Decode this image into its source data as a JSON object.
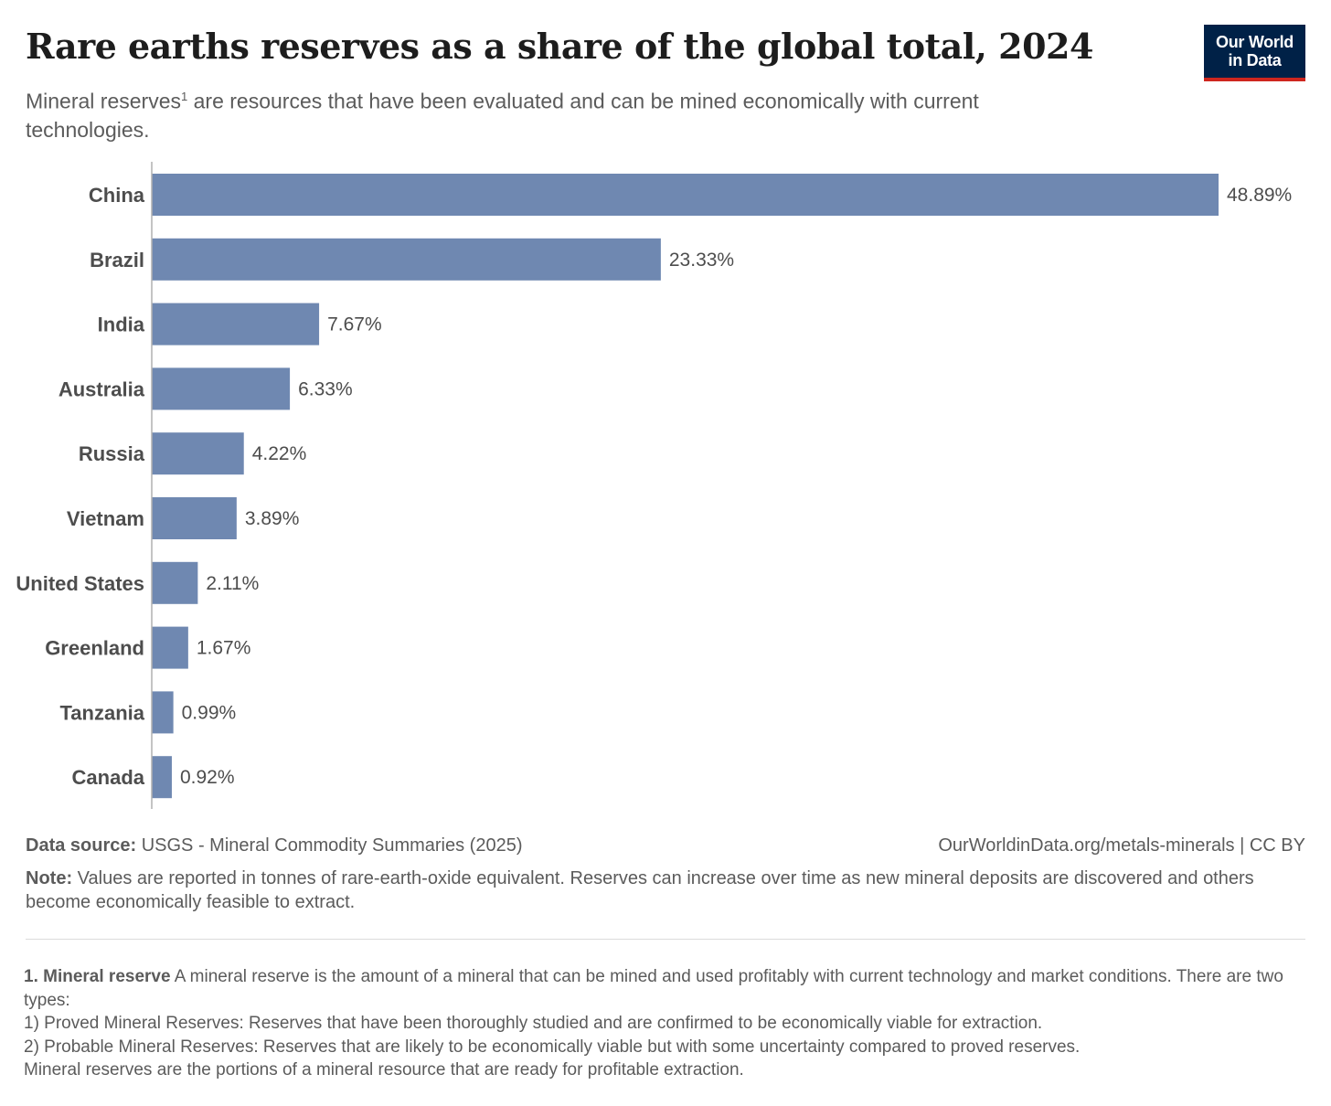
{
  "header": {
    "title": "Rare earths reserves as a share of the global total, 2024",
    "subtitle_before": "Mineral reserves",
    "subtitle_sup": "1",
    "subtitle_after": " are resources that have been evaluated and can be mined economically with current technologies.",
    "logo_line1": "Our World",
    "logo_line2": "in Data"
  },
  "colors": {
    "bar": "#6f88b1",
    "axis": "#b0b0b0",
    "label": "#4d4d4d",
    "value": "#4d4d4d",
    "logo_bg": "#002147",
    "logo_accent": "#ce261e"
  },
  "chart_data": {
    "type": "bar",
    "orientation": "horizontal",
    "title": "Rare earths reserves as a share of the global total, 2024",
    "xlabel": "",
    "ylabel": "",
    "xlim": [
      0,
      48.89
    ],
    "grid": false,
    "legend": "none",
    "unit": "%",
    "categories": [
      "China",
      "Brazil",
      "India",
      "Australia",
      "Russia",
      "Vietnam",
      "United States",
      "Greenland",
      "Tanzania",
      "Canada"
    ],
    "values": [
      48.89,
      23.33,
      7.67,
      6.33,
      4.22,
      3.89,
      2.11,
      1.67,
      0.99,
      0.92
    ],
    "value_labels": [
      "48.89%",
      "23.33%",
      "7.67%",
      "6.33%",
      "4.22%",
      "3.89%",
      "2.11%",
      "1.67%",
      "0.99%",
      "0.92%"
    ]
  },
  "footer": {
    "source_label": "Data source:",
    "source_text": " USGS - Mineral Commodity Summaries (2025)",
    "url_text": "OurWorldinData.org/metals-minerals | CC BY",
    "note_label": "Note:",
    "note_text": " Values are reported in tonnes of rare-earth-oxide equivalent. Reserves can increase over time as new mineral deposits are discovered and others become economically feasible to extract."
  },
  "footnote": {
    "label": "1. Mineral reserve",
    "line1": " A mineral reserve is the amount of a mineral that can be mined and used profitably with current technology and market conditions. There are two types:",
    "line2": "1) Proved Mineral Reserves: Reserves that have been thoroughly studied and are confirmed to be economically viable for extraction.",
    "line3": "2) Probable Mineral Reserves: Reserves that are likely to be economically viable but with some uncertainty compared to proved reserves.",
    "line4": "Mineral reserves are the portions of a mineral resource that are ready for profitable extraction."
  }
}
